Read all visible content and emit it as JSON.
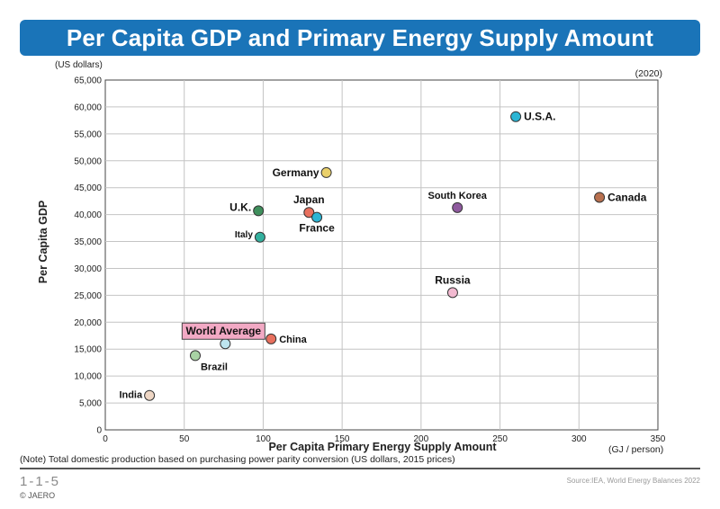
{
  "header": {
    "title": "Per Capita GDP and Primary Energy Supply Amount"
  },
  "y_unit": "(US dollars)",
  "year": "(2020)",
  "note": "(Note) Total domestic production based on purchasing power parity conversion (US dollars, 2015 prices)",
  "footer": {
    "figure_id": "1-1-5",
    "source": "Source:IEA, World Energy Balances 2022",
    "copyright": "© JAERO"
  },
  "chart_data": {
    "type": "scatter",
    "title": "Per Capita GDP and Primary Energy Supply Amount",
    "xlabel": "Per Capita Primary Energy Supply Amount",
    "ylabel": "Per Capita GDP",
    "x_unit": "(GJ / person)",
    "y_unit": "(US dollars)",
    "xlim": [
      0,
      350
    ],
    "ylim": [
      0,
      65000
    ],
    "x_ticks": [
      "0",
      "50",
      "100",
      "150",
      "200",
      "250",
      "300",
      "350"
    ],
    "y_ticks": [
      "0",
      "5,000",
      "10,000",
      "15,000",
      "20,000",
      "25,000",
      "30,000",
      "35,000",
      "40,000",
      "45,000",
      "50,000",
      "55,000",
      "60,000",
      "65,000"
    ],
    "grid": true,
    "points": [
      {
        "label": "U.S.A.",
        "x": 260,
        "y": 58200,
        "color": "#2bb5d4"
      },
      {
        "label": "Canada",
        "x": 313,
        "y": 43200,
        "color": "#b8704f"
      },
      {
        "label": "South Korea",
        "x": 223,
        "y": 41300,
        "color": "#8e5a9e"
      },
      {
        "label": "Germany",
        "x": 140,
        "y": 47800,
        "color": "#ead06a"
      },
      {
        "label": "Japan",
        "x": 129,
        "y": 40400,
        "color": "#e8705e"
      },
      {
        "label": "France",
        "x": 134,
        "y": 39500,
        "color": "#2bb5d4"
      },
      {
        "label": "U.K.",
        "x": 97,
        "y": 40700,
        "color": "#3f8f5c"
      },
      {
        "label": "Italy",
        "x": 98,
        "y": 35800,
        "color": "#33b09e"
      },
      {
        "label": "Russia",
        "x": 220,
        "y": 25500,
        "color": "#f2b9d0"
      },
      {
        "label": "China",
        "x": 105,
        "y": 16900,
        "color": "#e8705e"
      },
      {
        "label": "World Average",
        "x": 76,
        "y": 16000,
        "color": "#bde4ee"
      },
      {
        "label": "Brazil",
        "x": 57,
        "y": 13800,
        "color": "#a8d3a4"
      },
      {
        "label": "India",
        "x": 28,
        "y": 6400,
        "color": "#eed6c4"
      }
    ]
  }
}
